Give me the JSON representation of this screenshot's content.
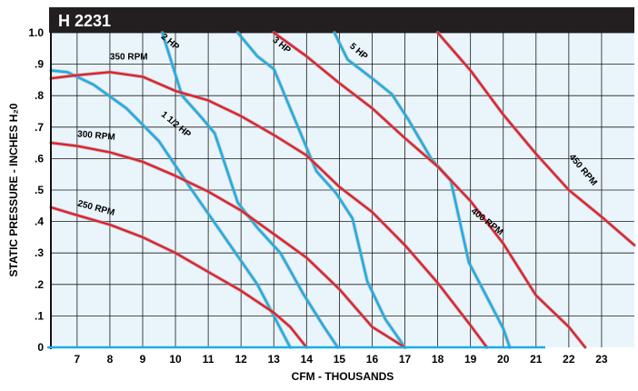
{
  "chart_data": {
    "type": "line",
    "title": "H 2231",
    "xlabel": "CFM - THOUSANDS",
    "ylabel": "STATIC PRESSURE - INCHES H₂0",
    "xlim": [
      6.2,
      24.0
    ],
    "ylim": [
      0,
      1.0
    ],
    "x_ticks": [
      "7",
      "8",
      "9",
      "10",
      "11",
      "12",
      "13",
      "14",
      "15",
      "16",
      "17",
      "18",
      "19",
      "20",
      "21",
      "22",
      "23"
    ],
    "x_tick_values": [
      7,
      8,
      9,
      10,
      11,
      12,
      13,
      14,
      15,
      16,
      17,
      18,
      19,
      20,
      21,
      22,
      23
    ],
    "y_ticks": [
      "0",
      ".1",
      ".2",
      ".3",
      ".4",
      ".5",
      ".6",
      ".7",
      ".8",
      ".9",
      "1.0"
    ],
    "y_tick_values": [
      0,
      0.1,
      0.2,
      0.3,
      0.4,
      0.5,
      0.6,
      0.7,
      0.8,
      0.9,
      1.0
    ],
    "grid": true,
    "colors": {
      "rpm": "#e4202a",
      "hp": "#1aaee2",
      "plot_bg": "#eaf5fb",
      "title_bg": "#231f20",
      "grid": "#1a1a1a"
    },
    "rpm_curves": [
      {
        "name": "250 RPM",
        "label_at": [
          7.0,
          0.45
        ],
        "label_rotate": 15,
        "x": [
          6.2,
          7.0,
          8.0,
          9.0,
          10.0,
          11.0,
          12.0,
          13.0,
          13.5,
          14.0
        ],
        "y": [
          0.445,
          0.42,
          0.39,
          0.35,
          0.3,
          0.24,
          0.18,
          0.11,
          0.065,
          0.0
        ]
      },
      {
        "name": "300 RPM",
        "label_at": [
          7.0,
          0.67
        ],
        "label_rotate": 5,
        "x": [
          6.2,
          7.0,
          8.0,
          9.0,
          10.0,
          11.0,
          12.0,
          13.0,
          14.0,
          15.0,
          16.0,
          17.0
        ],
        "y": [
          0.65,
          0.64,
          0.62,
          0.59,
          0.545,
          0.495,
          0.435,
          0.36,
          0.285,
          0.185,
          0.065,
          0.0
        ]
      },
      {
        "name": "350 RPM",
        "label_at": [
          8.0,
          0.915
        ],
        "label_rotate": 0,
        "x": [
          6.2,
          7.0,
          8.0,
          9.0,
          10.0,
          11.0,
          12.0,
          13.0,
          14.0,
          15.0,
          16.0,
          17.0,
          18.0,
          19.0,
          19.5
        ],
        "y": [
          0.855,
          0.865,
          0.875,
          0.86,
          0.815,
          0.785,
          0.735,
          0.675,
          0.61,
          0.51,
          0.43,
          0.325,
          0.205,
          0.07,
          0.0
        ]
      },
      {
        "name": "400 RPM",
        "label_at": [
          19.0,
          0.43
        ],
        "label_rotate": 38,
        "x": [
          13.0,
          14.0,
          15.0,
          16.0,
          17.0,
          18.0,
          19.0,
          20.0,
          21.0,
          22.0,
          22.5
        ],
        "y": [
          1.0,
          0.925,
          0.84,
          0.76,
          0.665,
          0.575,
          0.465,
          0.33,
          0.165,
          0.065,
          0.0
        ]
      },
      {
        "name": "450 RPM",
        "label_at": [
          22.0,
          0.605
        ],
        "label_rotate": 50,
        "x": [
          18.0,
          19.0,
          20.0,
          21.0,
          22.0,
          23.0,
          24.0
        ],
        "y": [
          1.0,
          0.88,
          0.74,
          0.615,
          0.5,
          0.415,
          0.325
        ]
      }
    ],
    "hp_curves": [
      {
        "name": "1 1/2 HP",
        "label_at": [
          9.55,
          0.738
        ],
        "label_rotate": 40,
        "x": [
          6.2,
          6.7,
          7.5,
          8.5,
          9.5,
          10.5,
          11.5,
          12.5,
          13.5
        ],
        "y": [
          0.88,
          0.875,
          0.835,
          0.76,
          0.655,
          0.5,
          0.35,
          0.2,
          0.0
        ]
      },
      {
        "name": "2 HP",
        "label_at": [
          9.55,
          0.985
        ],
        "label_rotate": 40,
        "x": [
          9.6,
          10.2,
          10.8,
          11.2,
          11.9,
          12.5,
          13.2,
          13.9,
          14.5,
          14.95
        ],
        "y": [
          1.0,
          0.8,
          0.73,
          0.68,
          0.46,
          0.38,
          0.3,
          0.17,
          0.07,
          0.0
        ]
      },
      {
        "name": "3 HP",
        "label_at": [
          12.95,
          0.975
        ],
        "label_rotate": 40,
        "x": [
          11.9,
          12.5,
          13.0,
          13.7,
          14.3,
          14.9,
          15.4,
          15.85,
          16.4,
          17.0
        ],
        "y": [
          1.0,
          0.925,
          0.885,
          0.71,
          0.56,
          0.49,
          0.41,
          0.21,
          0.09,
          0.0
        ]
      },
      {
        "name": "5 HP",
        "label_at": [
          15.3,
          0.955
        ],
        "label_rotate": 40,
        "x": [
          14.85,
          15.25,
          16.0,
          16.6,
          17.1,
          17.8,
          18.4,
          18.95,
          19.5,
          20.0,
          20.2
        ],
        "y": [
          1.0,
          0.915,
          0.855,
          0.805,
          0.725,
          0.6,
          0.53,
          0.27,
          0.16,
          0.06,
          0.0
        ]
      }
    ]
  }
}
